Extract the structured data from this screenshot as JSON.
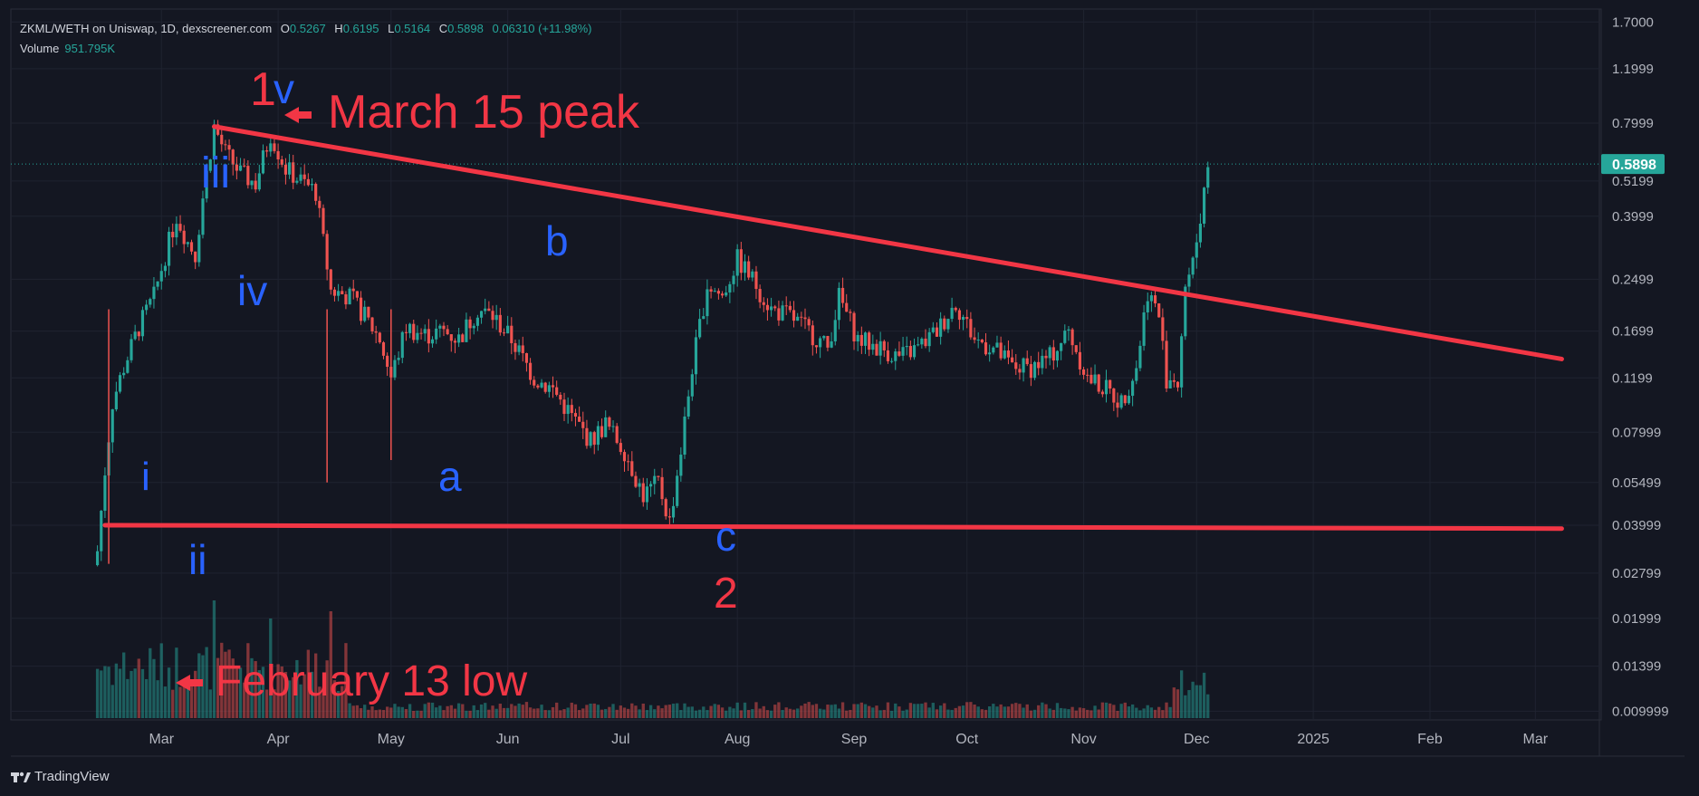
{
  "header": {
    "symbol": "ZKML/WETH on Uniswap, 1D, dexscreener.com",
    "open_label": "O",
    "open": "0.5267",
    "high_label": "H",
    "high": "0.6195",
    "low_label": "L",
    "low": "0.5164",
    "close_label": "C",
    "close": "0.5898",
    "change": "0.06310 (+11.98%)",
    "volume_label": "Volume",
    "volume": "951.795K"
  },
  "brand": {
    "name": "TradingView",
    "logo_icon": "tradingview-logo-icon"
  },
  "colors": {
    "up": "#26a69a",
    "down": "#ef5350",
    "annotation_red": "#f23645",
    "wave_blue": "#2962ff",
    "background": "#141722",
    "grid": "#1f2330"
  },
  "chart_data": {
    "type": "candlestick",
    "y_scale": "log",
    "ylim": [
      0.0095,
      1.75
    ],
    "y_ticks": [
      "1.7000",
      "1.1999",
      "0.7999",
      "0.5199",
      "0.3999",
      "0.2499",
      "0.1699",
      "0.1199",
      "0.07999",
      "0.05499",
      "0.03999",
      "0.02799",
      "0.01999",
      "0.01399",
      "0.009999"
    ],
    "current_price_label": "0.5898",
    "x_ticks": [
      "Mar",
      "Apr",
      "May",
      "Jun",
      "Jul",
      "Aug",
      "Sep",
      "Oct",
      "Nov",
      "Dec",
      "2025",
      "Feb",
      "Mar"
    ],
    "x_tick_dates": [
      "2024-03-01",
      "2024-04-01",
      "2024-05-01",
      "2024-06-01",
      "2024-07-01",
      "2024-08-01",
      "2024-09-01",
      "2024-10-01",
      "2024-11-01",
      "2024-12-01",
      "2025-01-01",
      "2025-02-01",
      "2025-03-01"
    ],
    "price_path": [
      [
        "2024-02-13",
        0.033
      ],
      [
        "2024-02-15",
        0.06
      ],
      [
        "2024-02-17",
        0.1
      ],
      [
        "2024-02-20",
        0.13
      ],
      [
        "2024-02-24",
        0.175
      ],
      [
        "2024-02-28",
        0.22
      ],
      [
        "2024-03-02",
        0.3
      ],
      [
        "2024-03-05",
        0.4
      ],
      [
        "2024-03-08",
        0.33
      ],
      [
        "2024-03-10",
        0.3
      ],
      [
        "2024-03-12",
        0.46
      ],
      [
        "2024-03-15",
        0.78
      ],
      [
        "2024-03-18",
        0.64
      ],
      [
        "2024-03-22",
        0.55
      ],
      [
        "2024-03-26",
        0.51
      ],
      [
        "2024-03-30",
        0.74
      ],
      [
        "2024-04-03",
        0.57
      ],
      [
        "2024-04-08",
        0.51
      ],
      [
        "2024-04-11",
        0.48
      ],
      [
        "2024-04-13",
        0.33
      ],
      [
        "2024-04-15",
        0.23
      ],
      [
        "2024-04-20",
        0.22
      ],
      [
        "2024-04-24",
        0.19
      ],
      [
        "2024-04-28",
        0.16
      ],
      [
        "2024-05-01",
        0.12
      ],
      [
        "2024-05-05",
        0.175
      ],
      [
        "2024-05-10",
        0.165
      ],
      [
        "2024-05-15",
        0.17
      ],
      [
        "2024-05-19",
        0.16
      ],
      [
        "2024-05-24",
        0.2
      ],
      [
        "2024-05-28",
        0.19
      ],
      [
        "2024-06-02",
        0.16
      ],
      [
        "2024-06-08",
        0.12
      ],
      [
        "2024-06-13",
        0.11
      ],
      [
        "2024-06-18",
        0.09
      ],
      [
        "2024-06-23",
        0.075
      ],
      [
        "2024-06-27",
        0.085
      ],
      [
        "2024-07-02",
        0.07
      ],
      [
        "2024-07-07",
        0.05
      ],
      [
        "2024-07-11",
        0.055
      ],
      [
        "2024-07-14",
        0.041
      ],
      [
        "2024-07-17",
        0.07
      ],
      [
        "2024-07-20",
        0.13
      ],
      [
        "2024-07-24",
        0.24
      ],
      [
        "2024-07-28",
        0.22
      ],
      [
        "2024-08-01",
        0.29
      ],
      [
        "2024-08-05",
        0.25
      ],
      [
        "2024-08-10",
        0.2
      ],
      [
        "2024-08-15",
        0.19
      ],
      [
        "2024-08-20",
        0.17
      ],
      [
        "2024-08-25",
        0.15
      ],
      [
        "2024-08-28",
        0.22
      ],
      [
        "2024-09-02",
        0.16
      ],
      [
        "2024-09-08",
        0.15
      ],
      [
        "2024-09-13",
        0.14
      ],
      [
        "2024-09-18",
        0.15
      ],
      [
        "2024-09-23",
        0.17
      ],
      [
        "2024-09-28",
        0.21
      ],
      [
        "2024-10-03",
        0.16
      ],
      [
        "2024-10-08",
        0.15
      ],
      [
        "2024-10-13",
        0.13
      ],
      [
        "2024-10-18",
        0.13
      ],
      [
        "2024-10-23",
        0.14
      ],
      [
        "2024-10-28",
        0.17
      ],
      [
        "2024-11-02",
        0.12
      ],
      [
        "2024-11-07",
        0.11
      ],
      [
        "2024-11-11",
        0.1
      ],
      [
        "2024-11-15",
        0.13
      ],
      [
        "2024-11-18",
        0.23
      ],
      [
        "2024-11-21",
        0.19
      ],
      [
        "2024-11-23",
        0.12
      ],
      [
        "2024-11-26",
        0.12
      ],
      [
        "2024-11-28",
        0.24
      ],
      [
        "2024-11-30",
        0.28
      ],
      [
        "2024-12-02",
        0.4
      ],
      [
        "2024-12-04",
        0.59
      ]
    ],
    "volume_note": "volume bars along the bottom, tallest near 2024-03-15 and 2024-04-15",
    "annotations": [
      {
        "text": "1",
        "color": "red"
      },
      {
        "text": "v",
        "color": "blue"
      },
      {
        "text": "March 15 peak",
        "color": "red"
      },
      {
        "text": "iii",
        "color": "blue"
      },
      {
        "text": "iv",
        "color": "blue"
      },
      {
        "text": "i",
        "color": "blue"
      },
      {
        "text": "ii",
        "color": "blue"
      },
      {
        "text": "a",
        "color": "blue"
      },
      {
        "text": "b",
        "color": "blue"
      },
      {
        "text": "c",
        "color": "blue"
      },
      {
        "text": "2",
        "color": "red"
      },
      {
        "text": "February 13 low",
        "color": "red"
      }
    ],
    "trendlines": [
      {
        "name": "descending resistance",
        "from": [
          "2024-03-15",
          0.78
        ],
        "to": [
          "2025-03-08",
          0.138
        ]
      },
      {
        "name": "horizontal support",
        "from": [
          "2024-02-15",
          0.04
        ],
        "to": [
          "2025-03-08",
          0.039
        ]
      }
    ]
  }
}
